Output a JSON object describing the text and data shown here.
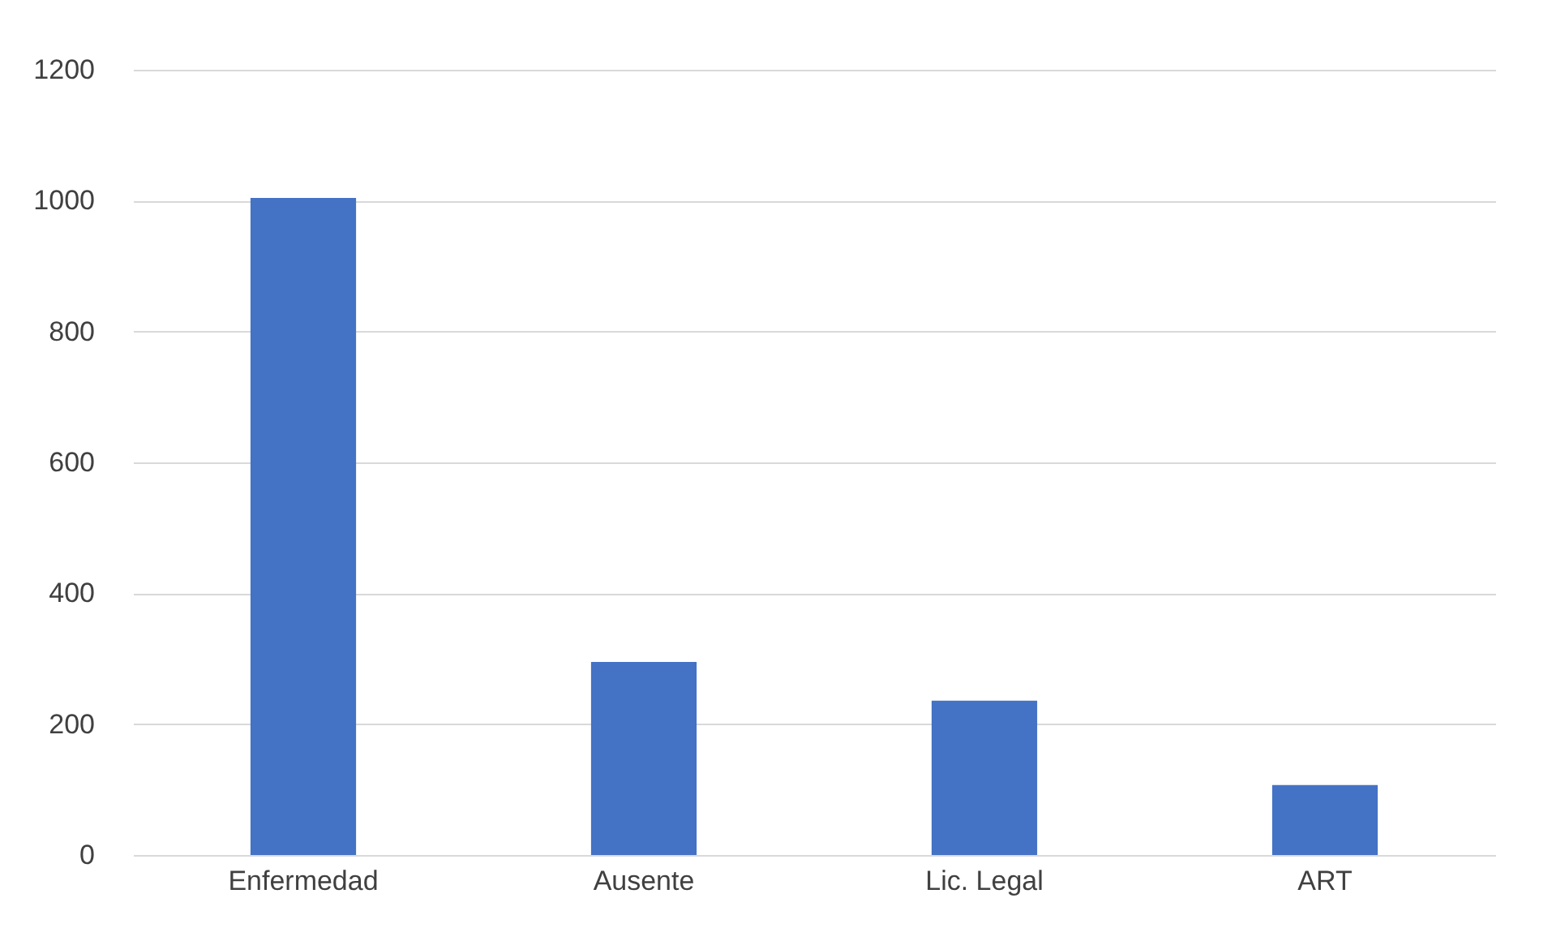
{
  "chart_data": {
    "type": "bar",
    "categories": [
      "Enfermedad",
      "Ausente",
      "Lic. Legal",
      "ART"
    ],
    "values": [
      1004,
      295,
      236,
      107
    ],
    "color": "#4472c4",
    "ylim": [
      0,
      1200
    ],
    "yticks": [
      0,
      200,
      400,
      600,
      800,
      1000,
      1200
    ],
    "grid": "y"
  }
}
